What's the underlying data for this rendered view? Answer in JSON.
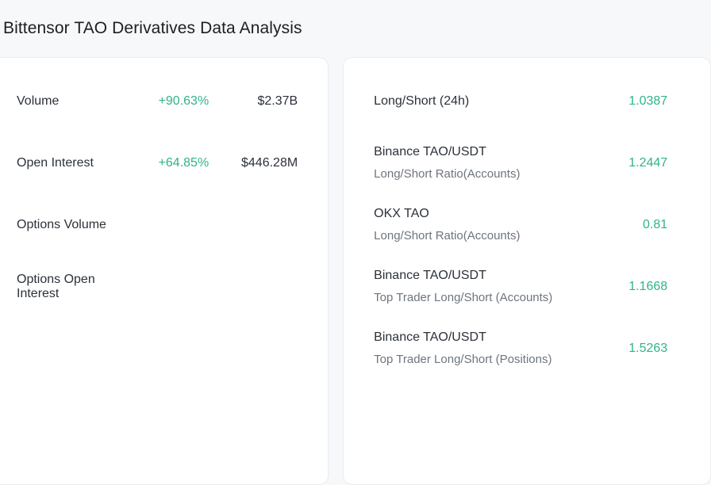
{
  "header": {
    "title": "Bittensor TAO Derivatives Data Analysis"
  },
  "colors": {
    "positive": "#2fb38b",
    "label_text": "#2b3139",
    "subtitle_text": "#6e757e",
    "page_background": "#f7f8fa",
    "card_background": "#ffffff"
  },
  "left_panel": {
    "rows": [
      {
        "label": "Volume",
        "change": "+90.63%",
        "value": "$2.37B"
      },
      {
        "label": "Open Interest",
        "change": "+64.85%",
        "value": "$446.28M"
      },
      {
        "label": "Options Volume",
        "change": "",
        "value": ""
      },
      {
        "label": "Options Open Interest",
        "change": "",
        "value": ""
      }
    ]
  },
  "right_panel": {
    "rows": [
      {
        "title": "Long/Short (24h)",
        "subtitle": "",
        "value": "1.0387"
      },
      {
        "title": "Binance TAO/USDT",
        "subtitle": "Long/Short Ratio(Accounts)",
        "value": "1.2447"
      },
      {
        "title": "OKX TAO",
        "subtitle": "Long/Short Ratio(Accounts)",
        "value": "0.81"
      },
      {
        "title": "Binance TAO/USDT",
        "subtitle": "Top Trader Long/Short (Accounts)",
        "value": "1.1668"
      },
      {
        "title": "Binance TAO/USDT",
        "subtitle": "Top Trader Long/Short (Positions)",
        "value": "1.5263"
      }
    ]
  }
}
